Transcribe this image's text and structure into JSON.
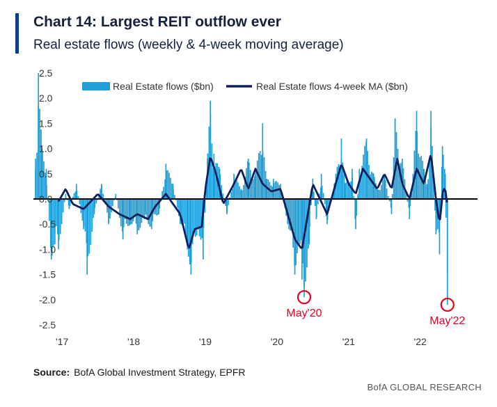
{
  "header": {
    "title": "Chart 14: Largest REIT outflow ever",
    "subtitle": "Real estate flows (weekly & 4-week moving average)"
  },
  "footer": {
    "source_label": "Source:",
    "source_text": "BofA Global Investment Strategy, EPFR",
    "brand": "BofA GLOBAL RESEARCH"
  },
  "colors": {
    "bars": "#1e9fd8",
    "ma_line": "#0d1f5c",
    "annotation": "#e8001c",
    "zero_line": "#000000"
  },
  "chart_data": {
    "type": "bar",
    "title": "Chart 14: Largest REIT outflow ever",
    "ylim": [
      -2.5,
      2.5
    ],
    "yticks": [
      2.5,
      2.0,
      1.5,
      1.0,
      0.5,
      0.0,
      -0.5,
      -1.0,
      -1.5,
      -2.0,
      -2.5
    ],
    "ytick_labels": [
      "2.5",
      "2.0",
      "1.5",
      "1.0",
      "0.5",
      "0.0",
      "-0.5",
      "-1.0",
      "-1.5",
      "-2.0",
      "-2.5"
    ],
    "xticks": [
      2017,
      2018,
      2019,
      2020,
      2021,
      2022
    ],
    "xtick_labels": [
      "'17",
      "'18",
      "'19",
      "'20",
      "'21",
      "'22"
    ],
    "xlim": [
      2016.6,
      2022.8
    ],
    "grid": false,
    "legend_position": "top",
    "series": [
      {
        "name": "Real Estate flows ($bn)",
        "type": "bar",
        "anchors": [
          [
            2016.63,
            0.8
          ],
          [
            2016.67,
            2.5
          ],
          [
            2016.72,
            1.0
          ],
          [
            2016.78,
            0.6
          ],
          [
            2016.85,
            -1.2
          ],
          [
            2016.9,
            -0.9
          ],
          [
            2016.95,
            -1.0
          ],
          [
            2017.05,
            0.1
          ],
          [
            2017.1,
            -0.2
          ],
          [
            2017.2,
            0.3
          ],
          [
            2017.3,
            -0.6
          ],
          [
            2017.35,
            -1.5
          ],
          [
            2017.45,
            -0.3
          ],
          [
            2017.55,
            0.3
          ],
          [
            2017.65,
            -0.5
          ],
          [
            2017.75,
            0.1
          ],
          [
            2017.85,
            -0.8
          ],
          [
            2017.95,
            -0.5
          ],
          [
            2018.05,
            -0.7
          ],
          [
            2018.15,
            -0.4
          ],
          [
            2018.25,
            -0.6
          ],
          [
            2018.35,
            -0.3
          ],
          [
            2018.45,
            0.7
          ],
          [
            2018.55,
            0.3
          ],
          [
            2018.65,
            -0.5
          ],
          [
            2018.75,
            -1.0
          ],
          [
            2018.8,
            -1.5
          ],
          [
            2018.9,
            -0.6
          ],
          [
            2018.97,
            -1.2
          ],
          [
            2019.03,
            0.8
          ],
          [
            2019.07,
            1.95
          ],
          [
            2019.12,
            0.9
          ],
          [
            2019.2,
            0.6
          ],
          [
            2019.3,
            -0.3
          ],
          [
            2019.4,
            0.5
          ],
          [
            2019.5,
            0.2
          ],
          [
            2019.6,
            0.8
          ],
          [
            2019.7,
            0.5
          ],
          [
            2019.8,
            1.5
          ],
          [
            2019.85,
            0.4
          ],
          [
            2019.95,
            0.4
          ],
          [
            2020.05,
            0.3
          ],
          [
            2020.15,
            -0.5
          ],
          [
            2020.25,
            -1.5
          ],
          [
            2020.3,
            -0.9
          ],
          [
            2020.35,
            -1.6
          ],
          [
            2020.38,
            -1.95
          ],
          [
            2020.45,
            -0.9
          ],
          [
            2020.5,
            0.4
          ],
          [
            2020.55,
            -0.4
          ],
          [
            2020.62,
            0.5
          ],
          [
            2020.7,
            -0.5
          ],
          [
            2020.8,
            0.3
          ],
          [
            2020.9,
            1.2
          ],
          [
            2020.95,
            0.3
          ],
          [
            2021.05,
            0.6
          ],
          [
            2021.1,
            -0.6
          ],
          [
            2021.15,
            0.6
          ],
          [
            2021.25,
            1.2
          ],
          [
            2021.35,
            0.5
          ],
          [
            2021.4,
            0.2
          ],
          [
            2021.5,
            0.5
          ],
          [
            2021.6,
            -0.3
          ],
          [
            2021.65,
            1.6
          ],
          [
            2021.75,
            0.8
          ],
          [
            2021.85,
            -0.4
          ],
          [
            2021.9,
            0.5
          ],
          [
            2021.95,
            1.75
          ],
          [
            2022.05,
            0.6
          ],
          [
            2022.1,
            0.3
          ],
          [
            2022.15,
            1.75
          ],
          [
            2022.22,
            -0.7
          ],
          [
            2022.27,
            -1.1
          ],
          [
            2022.31,
            1.05
          ],
          [
            2022.35,
            0.5
          ],
          [
            2022.38,
            -2.1
          ]
        ]
      },
      {
        "name": "Real Estate flows 4-week MA ($bn)",
        "type": "line",
        "anchors": [
          [
            2016.95,
            -0.05
          ],
          [
            2017.05,
            0.2
          ],
          [
            2017.15,
            -0.1
          ],
          [
            2017.3,
            -0.2
          ],
          [
            2017.4,
            -0.05
          ],
          [
            2017.5,
            0.1
          ],
          [
            2017.65,
            -0.15
          ],
          [
            2017.8,
            -0.3
          ],
          [
            2017.95,
            -0.4
          ],
          [
            2018.05,
            -0.3
          ],
          [
            2018.2,
            -0.4
          ],
          [
            2018.3,
            -0.15
          ],
          [
            2018.45,
            0.1
          ],
          [
            2018.55,
            -0.1
          ],
          [
            2018.65,
            -0.3
          ],
          [
            2018.77,
            -1.0
          ],
          [
            2018.85,
            -0.6
          ],
          [
            2018.95,
            -0.55
          ],
          [
            2019.0,
            0.2
          ],
          [
            2019.07,
            0.85
          ],
          [
            2019.15,
            0.5
          ],
          [
            2019.25,
            -0.1
          ],
          [
            2019.4,
            0.3
          ],
          [
            2019.5,
            0.6
          ],
          [
            2019.6,
            0.2
          ],
          [
            2019.7,
            0.6
          ],
          [
            2019.8,
            0.3
          ],
          [
            2019.92,
            0.15
          ],
          [
            2020.05,
            0.2
          ],
          [
            2020.15,
            -0.3
          ],
          [
            2020.25,
            -0.8
          ],
          [
            2020.35,
            -1.0
          ],
          [
            2020.42,
            -0.4
          ],
          [
            2020.5,
            0.3
          ],
          [
            2020.6,
            0.0
          ],
          [
            2020.7,
            -0.3
          ],
          [
            2020.8,
            0.2
          ],
          [
            2020.9,
            0.7
          ],
          [
            2021.0,
            0.3
          ],
          [
            2021.1,
            0.1
          ],
          [
            2021.2,
            0.6
          ],
          [
            2021.3,
            0.4
          ],
          [
            2021.4,
            0.2
          ],
          [
            2021.5,
            0.5
          ],
          [
            2021.6,
            0.2
          ],
          [
            2021.68,
            0.8
          ],
          [
            2021.75,
            0.3
          ],
          [
            2021.85,
            0.0
          ],
          [
            2021.95,
            0.6
          ],
          [
            2022.05,
            0.3
          ],
          [
            2022.15,
            0.9
          ],
          [
            2022.22,
            0.0
          ],
          [
            2022.27,
            -0.5
          ],
          [
            2022.32,
            0.2
          ],
          [
            2022.35,
            0.2
          ],
          [
            2022.38,
            -0.15
          ]
        ]
      }
    ],
    "annotations": [
      {
        "label": "May'20",
        "x": 2020.38,
        "y": -1.95
      },
      {
        "label": "May'22",
        "x": 2022.38,
        "y": -2.1
      }
    ]
  }
}
